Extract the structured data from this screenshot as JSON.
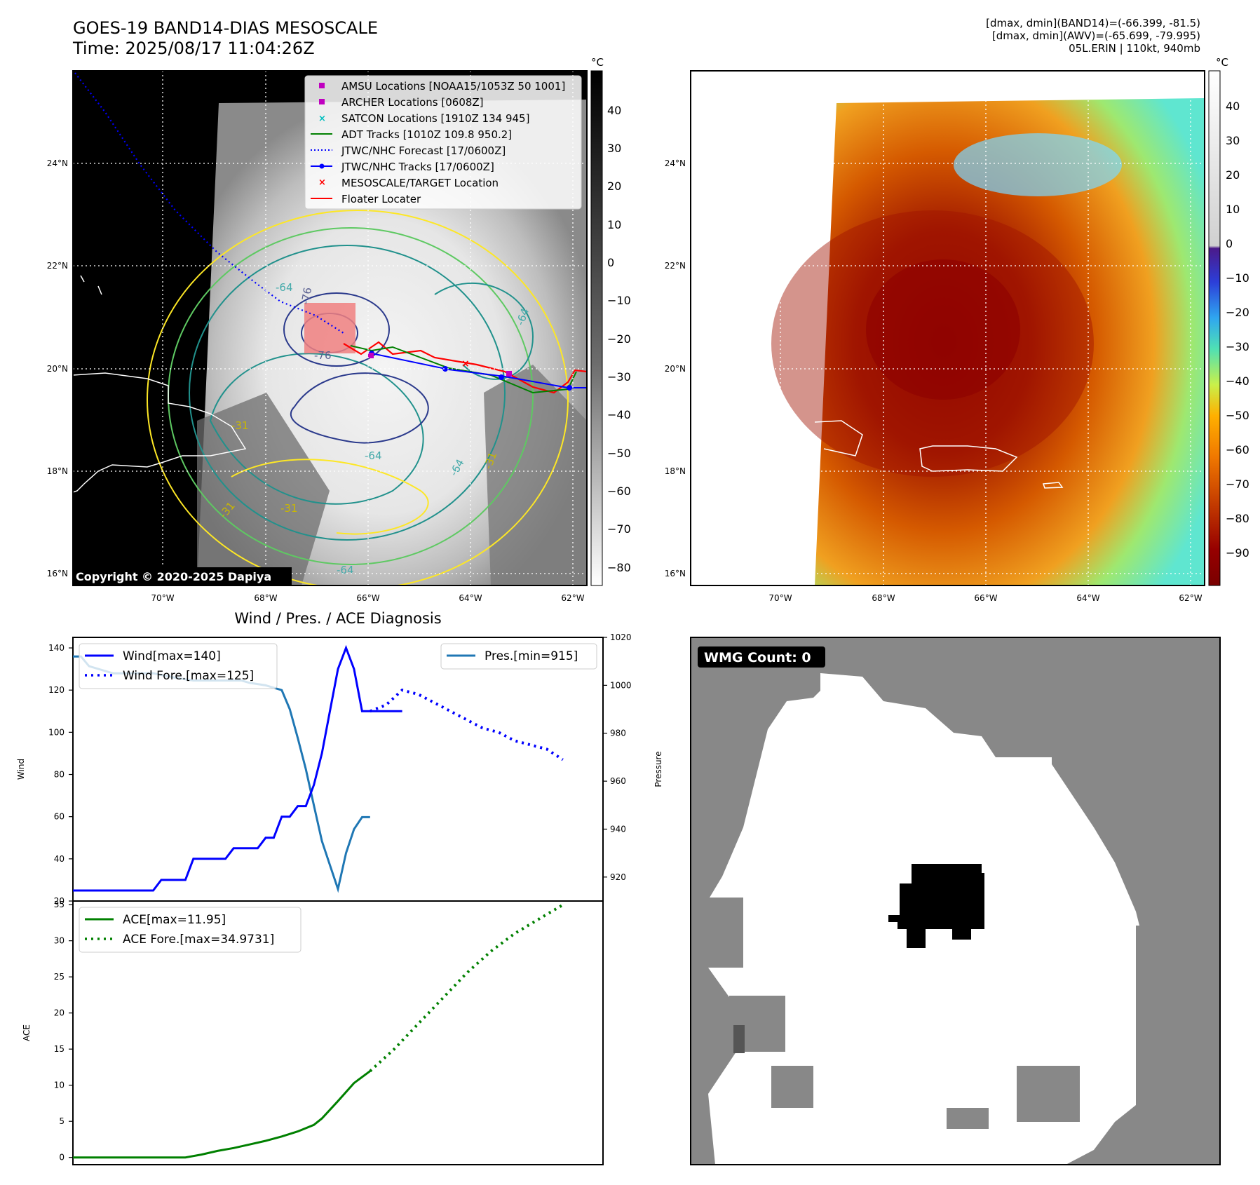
{
  "header": {
    "title_line1": "GOES-19 BAND14-DIAS MESOSCALE",
    "title_line2": "Time: 2025/08/17 11:04:26Z",
    "info_line1": "[dmax, dmin](BAND14)=(-66.399, -81.5)",
    "info_line2": "[dmax, dmin](AWV)=(-65.699, -79.995)",
    "info_line3": "05L.ERIN | 110kt, 940mb"
  },
  "colors": {
    "wind": "#0000ff",
    "pressure": "#1f77b4",
    "ace": "#008000",
    "red_track": "#ff0000",
    "magenta": "#c000c0",
    "cyan": "#00bfbf",
    "contour_blue": "#2b3a8c",
    "contour_teal": "#21918c",
    "contour_green": "#5ec962",
    "contour_yellow": "#fde725",
    "wmg_gray": "#888888",
    "wmg_dark": "#555555"
  },
  "map": {
    "lat_labels": [
      "24°N",
      "22°N",
      "20°N",
      "18°N",
      "16°N"
    ],
    "lon_labels": [
      "70°W",
      "68°W",
      "66°W",
      "64°W",
      "62°W"
    ],
    "copyright": "Copyright © 2020-2025 Dapiya",
    "contour_labels": [
      "-76",
      "-76",
      "-64",
      "-64",
      "-64",
      "-64",
      "-64",
      "-31",
      "-31",
      "-31",
      "-31"
    ],
    "legend": [
      {
        "label": "AMSU Locations [NOAA15/1053Z 50 1001]",
        "icon": "square-marker-icon",
        "color": "#c000c0"
      },
      {
        "label": "ARCHER Locations [0608Z]",
        "icon": "square-marker-icon",
        "color": "#c000c0"
      },
      {
        "label": "SATCON Locations [1910Z 134 945]",
        "icon": "x-marker-icon",
        "color": "#00bfbf"
      },
      {
        "label": "ADT Tracks [1010Z 109.8 950.2]",
        "icon": "solid-line-icon",
        "color": "#008000"
      },
      {
        "label": "JTWC/NHC Forecast [17/0600Z]",
        "icon": "dotted-line-icon",
        "color": "#0000ff"
      },
      {
        "label": "JTWC/NHC Tracks [17/0600Z]",
        "icon": "dot-line-icon",
        "color": "#0000ff"
      },
      {
        "label": "MESOSCALE/TARGET Location",
        "icon": "x-marker-icon",
        "color": "#ff0000"
      },
      {
        "label": "Floater Locater",
        "icon": "solid-line-icon",
        "color": "#ff0000"
      }
    ]
  },
  "colorbars": {
    "unit": "°C",
    "left_ticks": [
      "40",
      "30",
      "20",
      "10",
      "0",
      "−10",
      "−20",
      "−30",
      "−40",
      "−50",
      "−60",
      "−70",
      "−80"
    ],
    "right_ticks": [
      "40",
      "30",
      "20",
      "10",
      "0",
      "−10",
      "−20",
      "−30",
      "−40",
      "−50",
      "−60",
      "−70",
      "−80",
      "−90"
    ]
  },
  "wmg": {
    "label": "WMG Count: 0"
  },
  "chart_data": [
    {
      "type": "line",
      "title": "Wind / Pres. / ACE Diagnosis",
      "ylabel": "Wind",
      "ylim": [
        20,
        145
      ],
      "yticks": [
        20,
        40,
        60,
        80,
        100,
        120,
        140
      ],
      "y2label": "Pressure",
      "y2lim": [
        910,
        1020
      ],
      "y2ticks": [
        920,
        940,
        960,
        980,
        1000,
        1020
      ],
      "xlim": [
        0,
        66
      ],
      "series": [
        {
          "name": "Wind[max=140]",
          "axis": "left",
          "style": "solid",
          "x": [
            0,
            10,
            11,
            14,
            15,
            16,
            17,
            18,
            19,
            20,
            21,
            22,
            23,
            24,
            25,
            26,
            27,
            28,
            29,
            30,
            31,
            32,
            33,
            34,
            35,
            36,
            37,
            38,
            39,
            40,
            41
          ],
          "values": [
            25,
            25,
            30,
            30,
            40,
            40,
            40,
            40,
            40,
            45,
            45,
            45,
            45,
            50,
            50,
            60,
            60,
            65,
            65,
            75,
            90,
            110,
            130,
            140,
            130,
            110,
            110,
            110,
            110,
            110,
            110
          ]
        },
        {
          "name": "Wind Fore.[max=125]",
          "axis": "left",
          "style": "dotted",
          "x": [
            37,
            39,
            41,
            43,
            45,
            47,
            49,
            51,
            53,
            55,
            57,
            59,
            61
          ],
          "values": [
            110,
            113,
            120,
            118,
            114,
            110,
            106,
            102,
            100,
            96,
            94,
            92,
            87
          ]
        },
        {
          "name": "Pres.[min=915]",
          "axis": "right",
          "style": "solid",
          "x": [
            0,
            1,
            2,
            5,
            10,
            13,
            15,
            17,
            21,
            22,
            24,
            26,
            27,
            28,
            29,
            30,
            31,
            32,
            33,
            34,
            35,
            36,
            37
          ],
          "values": [
            1012,
            1012,
            1008,
            1005,
            1005,
            1003,
            1002,
            1002,
            1002,
            1001,
            1000,
            998,
            990,
            978,
            965,
            950,
            935,
            925,
            915,
            930,
            940,
            945,
            945
          ]
        }
      ]
    },
    {
      "type": "line",
      "ylabel": "ACE",
      "ylim": [
        -1,
        35.5
      ],
      "yticks": [
        0,
        5,
        10,
        15,
        20,
        25,
        30,
        35
      ],
      "xlim": [
        0,
        66
      ],
      "series": [
        {
          "name": "ACE[max=11.95]",
          "style": "solid",
          "x": [
            0,
            5,
            10,
            14,
            16,
            18,
            20,
            22,
            24,
            26,
            28,
            30,
            31,
            33,
            35,
            37
          ],
          "values": [
            0,
            0,
            0,
            0,
            0.4,
            0.9,
            1.3,
            1.8,
            2.3,
            2.9,
            3.6,
            4.5,
            5.4,
            7.8,
            10.3,
            11.95
          ]
        },
        {
          "name": "ACE Fore.[max=34.9731]",
          "style": "dotted",
          "x": [
            37,
            40,
            43,
            46,
            49,
            52,
            55,
            58,
            61
          ],
          "values": [
            11.95,
            15,
            18.5,
            22,
            25.5,
            28.5,
            31,
            33,
            34.97
          ]
        }
      ]
    }
  ]
}
